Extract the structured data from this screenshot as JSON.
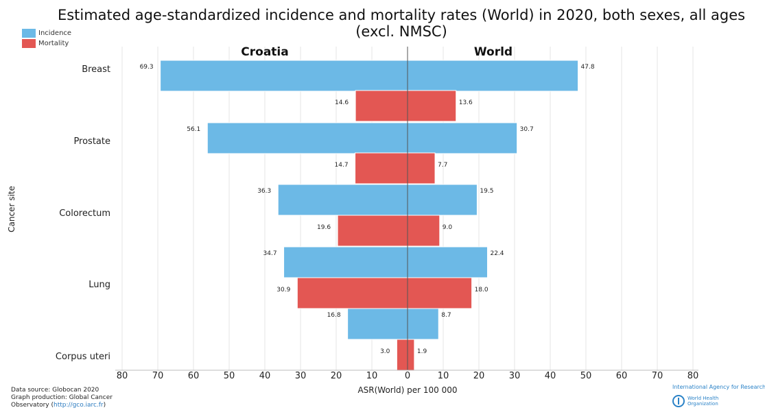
{
  "title": "Estimated age-standardized incidence and mortality rates (World) in 2020, both sexes, all ages (excl. NMSC)",
  "legend": [
    {
      "label": "Incidence",
      "color": "#6cb9e6"
    },
    {
      "label": "Mortality",
      "color": "#e35753"
    }
  ],
  "footer": {
    "line1": "Data source: Globocan 2020",
    "line2": "Graph production: Global Cancer",
    "line3_prefix": "Observatory (",
    "link": "http://gco.iarc.fr",
    "line3_suffix": ")"
  },
  "logos": {
    "iarc": "International Agency for Research on Cancer",
    "who_line1": "World Health",
    "who_line2": "Organization"
  },
  "chart_data": {
    "type": "bar",
    "orientation": "horizontal-back-to-back",
    "title": "Estimated age-standardized incidence and mortality rates (World) in 2020, both sexes, all ages (excl. NMSC)",
    "left_panel": "Croatia",
    "right_panel": "World",
    "xlabel": "ASR(World) per 100 000",
    "ylabel": "Cancer site",
    "xlim": [
      -80,
      80
    ],
    "xticks": [
      "80",
      "70",
      "60",
      "50",
      "40",
      "30",
      "20",
      "10",
      "0",
      "10",
      "20",
      "30",
      "40",
      "50",
      "60",
      "70",
      "80"
    ],
    "categories": [
      "Breast",
      "Prostate",
      "Colorectum",
      "Lung",
      "Corpus uteri"
    ],
    "series": [
      {
        "name": "Incidence",
        "color": "#6cb9e6",
        "left": [
          69.3,
          56.1,
          36.3,
          34.7,
          16.8
        ],
        "right": [
          47.8,
          30.7,
          19.5,
          22.4,
          8.7
        ]
      },
      {
        "name": "Mortality",
        "color": "#e35753",
        "left": [
          14.6,
          14.7,
          19.6,
          30.9,
          3.0
        ],
        "right": [
          13.6,
          7.7,
          9.0,
          18.0,
          1.9
        ]
      }
    ],
    "grid": true,
    "legend_position": "top-left"
  }
}
